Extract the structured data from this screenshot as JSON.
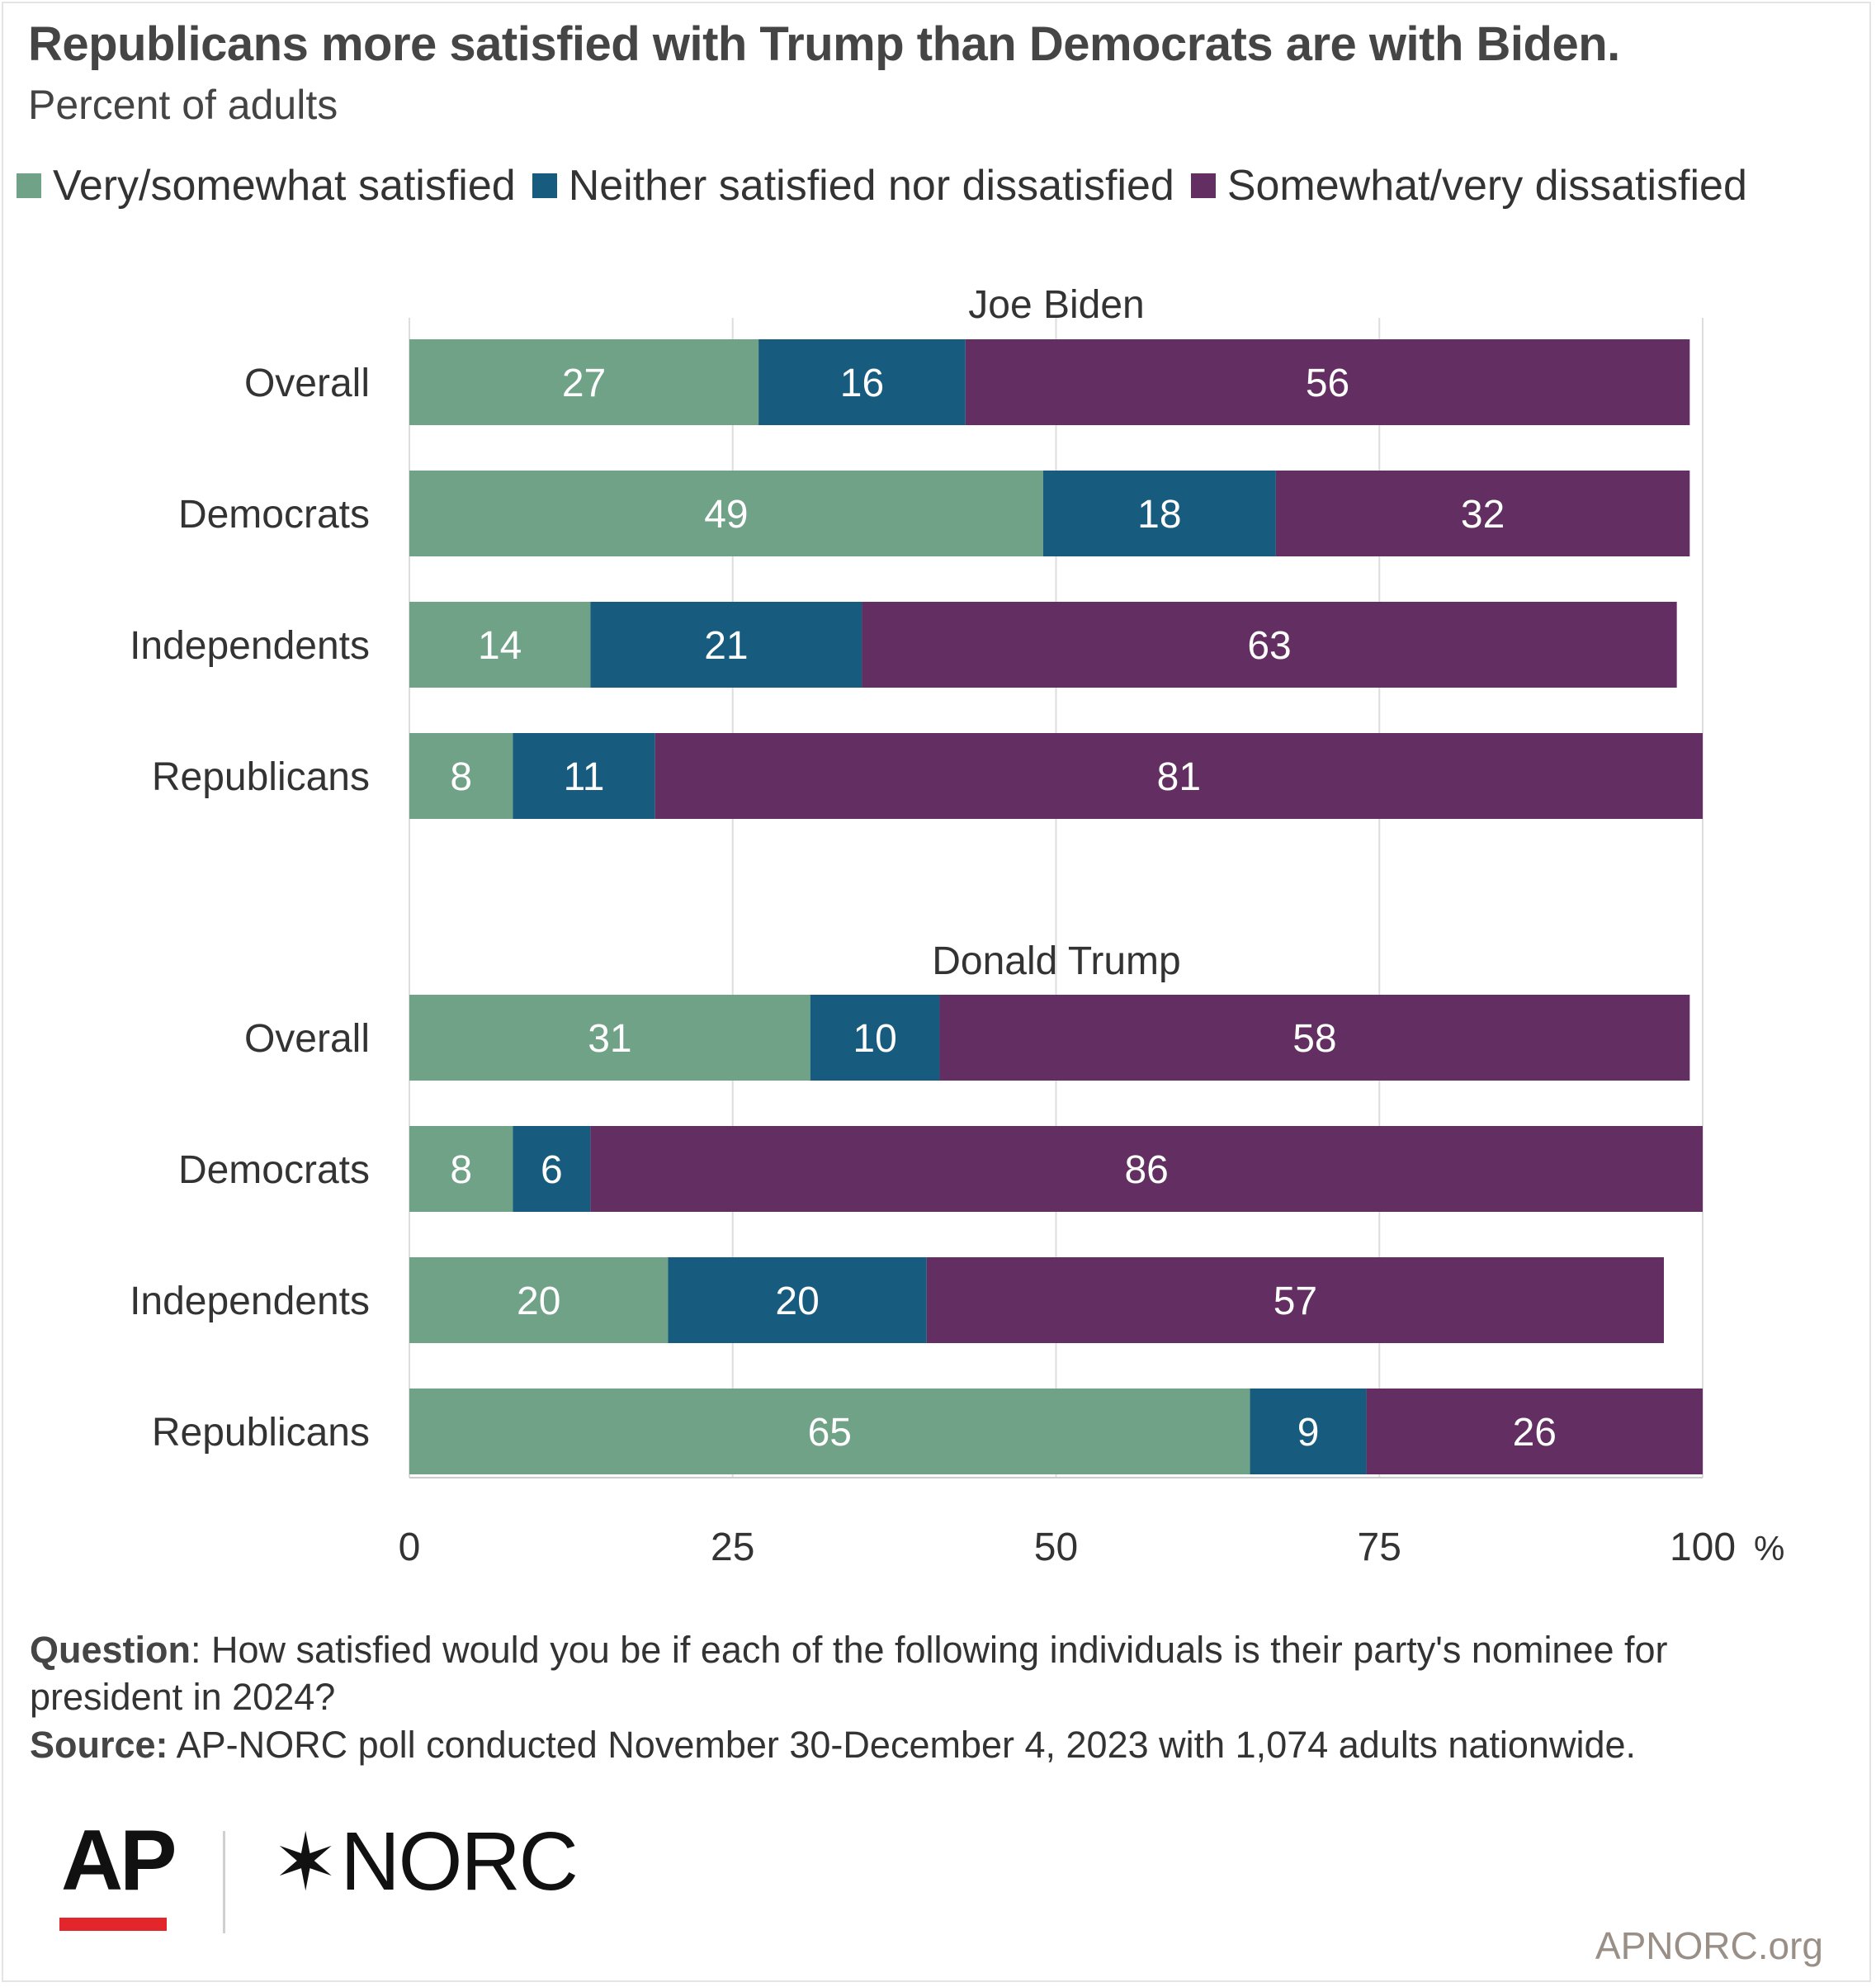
{
  "chart_data": {
    "type": "bar",
    "orientation": "horizontal",
    "stacked": true,
    "title": "Republicans more satisfied with Trump than Democrats are with Biden.",
    "subtitle": "Percent of adults",
    "xlim": [
      0,
      100
    ],
    "x_ticks": [
      "0",
      "25",
      "50",
      "75",
      "100"
    ],
    "x_unit": "%",
    "grid": true,
    "legend_position": "top",
    "series": [
      {
        "name": "Very/somewhat satisfied",
        "color": "#6fa287"
      },
      {
        "name": "Neither satisfied nor dissatisfied",
        "color": "#175c7e"
      },
      {
        "name": "Somewhat/very dissatisfied",
        "color": "#632e62"
      }
    ],
    "groups": [
      {
        "title": "Joe Biden",
        "rows": [
          {
            "label": "Overall",
            "values": [
              27,
              16,
              56
            ]
          },
          {
            "label": "Democrats",
            "values": [
              49,
              18,
              32
            ]
          },
          {
            "label": "Independents",
            "values": [
              14,
              21,
              63
            ]
          },
          {
            "label": "Republicans",
            "values": [
              8,
              11,
              81
            ]
          }
        ]
      },
      {
        "title": "Donald Trump",
        "rows": [
          {
            "label": "Overall",
            "values": [
              31,
              10,
              58
            ]
          },
          {
            "label": "Democrats",
            "values": [
              8,
              6,
              86
            ]
          },
          {
            "label": "Independents",
            "values": [
              20,
              20,
              57
            ]
          },
          {
            "label": "Republicans",
            "values": [
              65,
              9,
              26
            ]
          }
        ]
      }
    ]
  },
  "footer": {
    "question_label": "Question",
    "question_text": ": How satisfied would you be if each of the following individuals is their party's nominee for president in 2024?",
    "source_label": "Source:",
    "source_text": " AP-NORC poll conducted November 30-December 4, 2023 with 1,074 adults nationwide."
  },
  "branding": {
    "logo_ap": "AP",
    "logo_norc": "NORC",
    "website": "APNORC.org"
  }
}
